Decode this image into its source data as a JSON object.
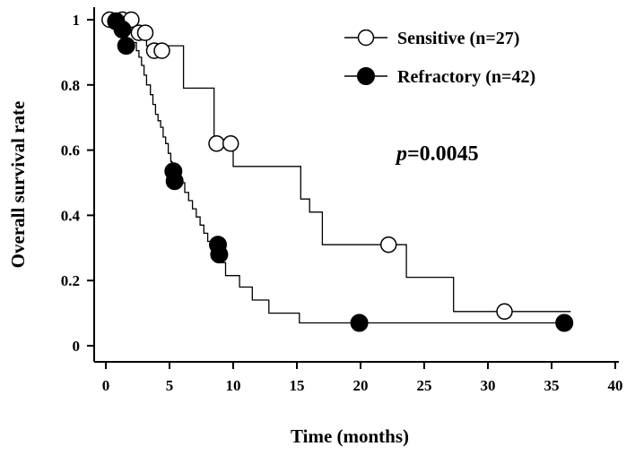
{
  "chart_data": {
    "type": "line",
    "xlabel": "Time (months)",
    "ylabel": "Overall survival rate",
    "xlim": [
      0,
      40
    ],
    "ylim": [
      0,
      1
    ],
    "x_ticks": [
      0,
      5,
      10,
      15,
      20,
      25,
      30,
      35,
      40
    ],
    "x_tick_labels": [
      "0",
      "5",
      "10",
      "15",
      "20",
      "25",
      "30",
      "35",
      "40"
    ],
    "y_ticks": [
      0,
      0.2,
      0.4,
      0.6,
      0.8,
      1
    ],
    "y_tick_labels": [
      "0",
      "0.2",
      "0.4",
      "0.6",
      "0.8",
      "1"
    ],
    "grid": false,
    "legend_position": "top-right",
    "annotation": {
      "italic": "p",
      "text": "=0.0045"
    },
    "series": [
      {
        "name": "Sensitive (n=27)",
        "marker": "open-circle",
        "steps": [
          [
            0,
            1
          ],
          [
            2.4,
            0.96
          ],
          [
            3.2,
            0.92
          ],
          [
            6.1,
            0.79
          ],
          [
            8.5,
            0.62
          ],
          [
            10,
            0.55
          ],
          [
            15.3,
            0.45
          ],
          [
            16,
            0.41
          ],
          [
            17,
            0.31
          ],
          [
            23.6,
            0.21
          ],
          [
            27.3,
            0.105
          ],
          [
            36.5,
            0.105
          ]
        ],
        "censored": [
          [
            0.3,
            1
          ],
          [
            1.3,
            1
          ],
          [
            2.0,
            1
          ],
          [
            2.6,
            0.96
          ],
          [
            3.1,
            0.96
          ],
          [
            3.8,
            0.905
          ],
          [
            4.4,
            0.905
          ],
          [
            8.7,
            0.62
          ],
          [
            9.8,
            0.62
          ],
          [
            22.2,
            0.31
          ],
          [
            31.3,
            0.105
          ]
        ]
      },
      {
        "name": "Refractory (n=42)",
        "marker": "filled-circle",
        "steps": [
          [
            0,
            1
          ],
          [
            0.8,
            0.98
          ],
          [
            1.2,
            0.96
          ],
          [
            1.6,
            0.93
          ],
          [
            2.4,
            0.905
          ],
          [
            2.6,
            0.885
          ],
          [
            2.8,
            0.86
          ],
          [
            3.0,
            0.83
          ],
          [
            3.2,
            0.8
          ],
          [
            3.5,
            0.77
          ],
          [
            3.7,
            0.74
          ],
          [
            3.9,
            0.71
          ],
          [
            4.1,
            0.69
          ],
          [
            4.3,
            0.67
          ],
          [
            4.5,
            0.64
          ],
          [
            4.7,
            0.62
          ],
          [
            4.9,
            0.59
          ],
          [
            5.1,
            0.565
          ],
          [
            5.2,
            0.54
          ],
          [
            5.6,
            0.5
          ],
          [
            6.2,
            0.47
          ],
          [
            6.5,
            0.445
          ],
          [
            6.8,
            0.42
          ],
          [
            7.1,
            0.395
          ],
          [
            7.4,
            0.37
          ],
          [
            7.7,
            0.345
          ],
          [
            8.0,
            0.32
          ],
          [
            8.6,
            0.31
          ],
          [
            8.9,
            0.255
          ],
          [
            9.4,
            0.215
          ],
          [
            10.5,
            0.18
          ],
          [
            11.5,
            0.14
          ],
          [
            12.8,
            0.1
          ],
          [
            15.2,
            0.07
          ],
          [
            36.5,
            0.07
          ]
        ],
        "censored": [
          [
            0.8,
            0.995
          ],
          [
            1.3,
            0.97
          ],
          [
            1.6,
            0.92
          ],
          [
            5.3,
            0.535
          ],
          [
            5.4,
            0.505
          ],
          [
            8.8,
            0.31
          ],
          [
            8.9,
            0.28
          ],
          [
            19.9,
            0.07
          ],
          [
            36,
            0.07
          ]
        ]
      }
    ]
  }
}
